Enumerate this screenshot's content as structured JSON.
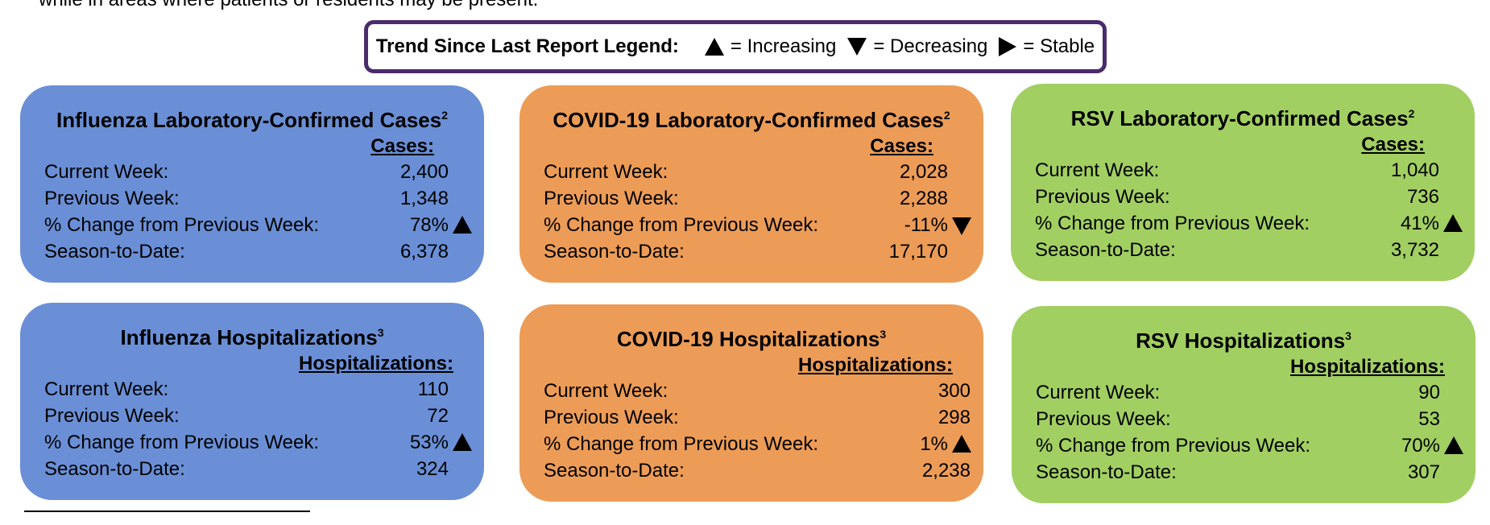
{
  "intro_text": "while in areas where patients or residents may be present.",
  "legend": {
    "title": "Trend Since Last Report Legend:",
    "increasing": "= Increasing",
    "decreasing": "= Decreasing",
    "stable": "= Stable"
  },
  "labels": {
    "current": "Current Week:",
    "previous": "Previous Week:",
    "change": "% Change from Previous Week:",
    "season": "Season-to-Date:"
  },
  "cards": {
    "flu_cases": {
      "title": "Influenza Laboratory-Confirmed Cases",
      "sup": "2",
      "col": "Cases:",
      "current": "2,400",
      "previous": "1,348",
      "change": "78%",
      "trend": "increasing",
      "season": "6,378",
      "color": "#6a8fd6"
    },
    "covid_cases": {
      "title": "COVID-19 Laboratory-Confirmed Cases",
      "sup": "2",
      "col": "Cases:",
      "current": "2,028",
      "previous": "2,288",
      "change": "-11%",
      "trend": "decreasing",
      "season": "17,170",
      "color": "#ec9c57"
    },
    "rsv_cases": {
      "title": "RSV Laboratory-Confirmed Cases",
      "sup": "2",
      "col": "Cases:",
      "current": "1,040",
      "previous": "736",
      "change": "41%",
      "trend": "increasing",
      "season": "3,732",
      "color": "#a2cf62"
    },
    "flu_hosp": {
      "title": "Influenza Hospitalizations",
      "sup": "3",
      "col": "Hospitalizations:",
      "current": "110",
      "previous": "72",
      "change": "53%",
      "trend": "increasing",
      "season": "324",
      "color": "#6a8fd6"
    },
    "covid_hosp": {
      "title": "COVID-19 Hospitalizations",
      "sup": "3",
      "col": "Hospitalizations:",
      "current": "300",
      "previous": "298",
      "change": "1%",
      "trend": "increasing",
      "season": "2,238",
      "color": "#ec9c57"
    },
    "rsv_hosp": {
      "title": "RSV Hospitalizations",
      "sup": "3",
      "col": "Hospitalizations:",
      "current": "90",
      "previous": "53",
      "change": "70%",
      "trend": "increasing",
      "season": "307",
      "color": "#a2cf62"
    }
  }
}
